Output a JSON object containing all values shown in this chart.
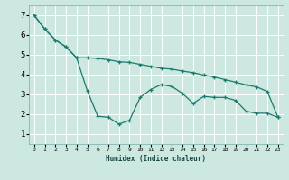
{
  "title": "",
  "xlabel": "Humidex (Indice chaleur)",
  "bg_color": "#cce8e0",
  "line_color": "#1a7a6e",
  "grid_color": "#ffffff",
  "xlim": [
    -0.5,
    23.5
  ],
  "ylim": [
    0.5,
    7.5
  ],
  "yticks": [
    1,
    2,
    3,
    4,
    5,
    6,
    7
  ],
  "xticks": [
    0,
    1,
    2,
    3,
    4,
    5,
    6,
    7,
    8,
    9,
    10,
    11,
    12,
    13,
    14,
    15,
    16,
    17,
    18,
    19,
    20,
    21,
    22,
    23
  ],
  "series1_x": [
    0,
    1,
    2,
    3,
    4,
    5,
    6,
    7,
    8,
    9,
    10,
    11,
    12,
    13,
    14,
    15,
    16,
    17,
    18,
    19,
    20,
    21,
    22,
    23
  ],
  "series1_y": [
    7.0,
    6.3,
    5.75,
    5.4,
    4.85,
    4.85,
    4.82,
    4.75,
    4.65,
    4.62,
    4.52,
    4.42,
    4.32,
    4.28,
    4.18,
    4.1,
    3.98,
    3.88,
    3.75,
    3.62,
    3.48,
    3.38,
    3.15,
    1.85
  ],
  "series2_x": [
    0,
    1,
    2,
    3,
    4,
    5,
    6,
    7,
    8,
    9,
    10,
    11,
    12,
    13,
    14,
    15,
    16,
    17,
    18,
    19,
    20,
    21,
    22,
    23
  ],
  "series2_y": [
    7.0,
    6.3,
    5.75,
    5.4,
    4.85,
    3.2,
    1.9,
    1.85,
    1.5,
    1.7,
    2.85,
    3.25,
    3.5,
    3.4,
    3.05,
    2.55,
    2.9,
    2.85,
    2.85,
    2.7,
    2.15,
    2.05,
    2.05,
    1.85
  ]
}
